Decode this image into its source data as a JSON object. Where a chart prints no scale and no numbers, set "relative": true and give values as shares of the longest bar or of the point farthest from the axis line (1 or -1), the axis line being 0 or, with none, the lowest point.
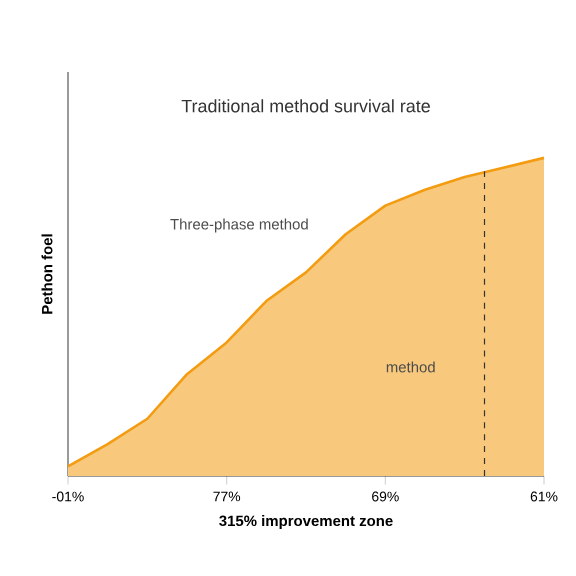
{
  "chart_data": {
    "type": "area",
    "relative": true,
    "title": "Traditional method survival rate",
    "xlabel": "315% improvement zone",
    "ylabel": "Pethon foel",
    "annotations": [
      "Three-phase method",
      "method"
    ],
    "categories": [
      "-01%",
      null,
      null,
      null,
      "77%",
      null,
      null,
      null,
      "69%",
      null,
      null,
      null,
      "61%"
    ],
    "series": [
      {
        "color": "#f39c12",
        "values": [
          0.03,
          0.1,
          0.18,
          0.32,
          0.42,
          0.55,
          0.64,
          0.76,
          0.85,
          0.9,
          0.94,
          0.97,
          1
        ]
      }
    ],
    "grid": false
  }
}
